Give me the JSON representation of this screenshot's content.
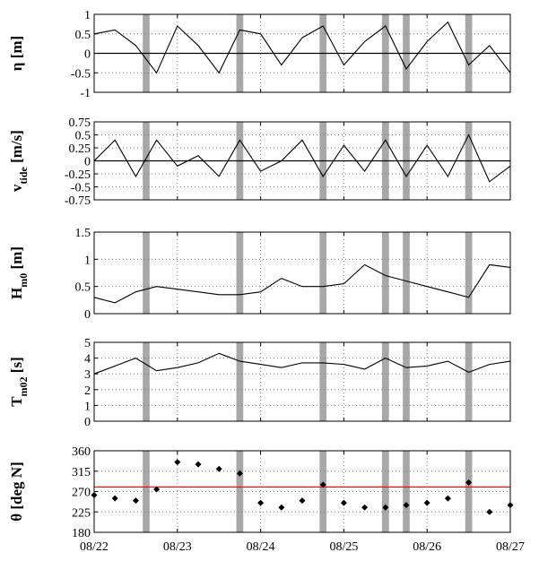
{
  "chart_data": [
    {
      "type": "line",
      "ylabel": "η [m]",
      "ylim": [
        -1,
        1
      ],
      "yticks": [
        "1",
        "0.5",
        "0",
        "-0.5",
        "-1"
      ],
      "x": [
        "08/22 00:00",
        "08/22 06:00",
        "08/22 12:00",
        "08/22 18:00",
        "08/23 00:00",
        "08/23 06:00",
        "08/23 12:00",
        "08/23 18:00",
        "08/24 00:00",
        "08/24 06:00",
        "08/24 12:00",
        "08/24 18:00",
        "08/25 00:00",
        "08/25 06:00",
        "08/25 12:00",
        "08/25 18:00",
        "08/26 00:00",
        "08/26 06:00",
        "08/26 12:00",
        "08/26 18:00",
        "08/27 00:00"
      ],
      "series": [
        {
          "values": [
            0.5,
            0.6,
            0.2,
            -0.5,
            0.7,
            0.2,
            -0.5,
            0.6,
            0.5,
            -0.3,
            0.4,
            0.7,
            -0.3,
            0.3,
            0.7,
            -0.4,
            0.3,
            0.8,
            -0.3,
            0.2,
            -0.5
          ]
        }
      ],
      "zero_line": 0,
      "grid": true
    },
    {
      "type": "line",
      "ylabel": "v_tide [m/s]",
      "ylim": [
        -0.75,
        0.75
      ],
      "yticks": [
        "0.75",
        "0.5",
        "0.25",
        "0",
        "-0.25",
        "-0.5",
        "-0.75"
      ],
      "x": [
        "08/22 00:00",
        "08/22 06:00",
        "08/22 12:00",
        "08/22 18:00",
        "08/23 00:00",
        "08/23 06:00",
        "08/23 12:00",
        "08/23 18:00",
        "08/24 00:00",
        "08/24 06:00",
        "08/24 12:00",
        "08/24 18:00",
        "08/25 00:00",
        "08/25 06:00",
        "08/25 12:00",
        "08/25 18:00",
        "08/26 00:00",
        "08/26 06:00",
        "08/26 12:00",
        "08/26 18:00",
        "08/27 00:00"
      ],
      "series": [
        {
          "values": [
            0.0,
            0.4,
            -0.3,
            0.4,
            -0.1,
            0.1,
            -0.3,
            0.4,
            -0.2,
            0.0,
            0.4,
            -0.3,
            0.3,
            -0.2,
            0.4,
            -0.3,
            0.3,
            -0.3,
            0.5,
            -0.4,
            -0.1
          ]
        }
      ],
      "zero_line": 0,
      "grid": true
    },
    {
      "type": "line",
      "ylabel": "H_m0 [m]",
      "ylim": [
        0,
        1.5
      ],
      "yticks": [
        "1.5",
        "1",
        "0.5",
        "0"
      ],
      "x": [
        "08/22 00:00",
        "08/22 06:00",
        "08/22 12:00",
        "08/22 18:00",
        "08/23 00:00",
        "08/23 06:00",
        "08/23 12:00",
        "08/23 18:00",
        "08/24 00:00",
        "08/24 06:00",
        "08/24 12:00",
        "08/24 18:00",
        "08/25 00:00",
        "08/25 06:00",
        "08/25 12:00",
        "08/25 18:00",
        "08/26 00:00",
        "08/26 06:00",
        "08/26 12:00",
        "08/26 18:00",
        "08/27 00:00"
      ],
      "series": [
        {
          "values": [
            0.3,
            0.2,
            0.4,
            0.5,
            0.45,
            0.4,
            0.35,
            0.35,
            0.4,
            0.65,
            0.5,
            0.5,
            0.55,
            0.9,
            0.7,
            0.6,
            0.5,
            0.4,
            0.3,
            0.9,
            0.85
          ]
        }
      ],
      "grid": true
    },
    {
      "type": "line",
      "ylabel": "T_m02 [s]",
      "ylim": [
        0,
        5
      ],
      "yticks": [
        "5",
        "4",
        "3",
        "2",
        "1",
        "0"
      ],
      "x": [
        "08/22 00:00",
        "08/22 06:00",
        "08/22 12:00",
        "08/22 18:00",
        "08/23 00:00",
        "08/23 06:00",
        "08/23 12:00",
        "08/23 18:00",
        "08/24 00:00",
        "08/24 06:00",
        "08/24 12:00",
        "08/24 18:00",
        "08/25 00:00",
        "08/25 06:00",
        "08/25 12:00",
        "08/25 18:00",
        "08/26 00:00",
        "08/26 06:00",
        "08/26 12:00",
        "08/26 18:00",
        "08/27 00:00"
      ],
      "series": [
        {
          "values": [
            3.0,
            3.5,
            4.0,
            3.2,
            3.4,
            3.7,
            4.3,
            3.8,
            3.6,
            3.4,
            3.7,
            3.7,
            3.6,
            3.3,
            4.0,
            3.4,
            3.5,
            3.8,
            3.1,
            3.6,
            3.8
          ]
        }
      ],
      "grid": true
    },
    {
      "type": "scatter",
      "ylabel": "θ [deg N]",
      "ylim": [
        180,
        360
      ],
      "yticks": [
        "360",
        "315",
        "270",
        "225",
        "180"
      ],
      "x": [
        "08/22 00:00",
        "08/22 06:00",
        "08/22 12:00",
        "08/22 18:00",
        "08/23 00:00",
        "08/23 06:00",
        "08/23 12:00",
        "08/23 18:00",
        "08/24 00:00",
        "08/24 06:00",
        "08/24 12:00",
        "08/24 18:00",
        "08/25 00:00",
        "08/25 06:00",
        "08/25 12:00",
        "08/25 18:00",
        "08/26 00:00",
        "08/26 06:00",
        "08/26 12:00",
        "08/26 18:00",
        "08/27 00:00"
      ],
      "series": [
        {
          "values": [
            262,
            255,
            250,
            275,
            335,
            330,
            320,
            310,
            245,
            235,
            250,
            285,
            245,
            235,
            235,
            240,
            245,
            255,
            290,
            225,
            240
          ]
        }
      ],
      "reference_line": 280,
      "grid": true
    }
  ],
  "xaxis": {
    "range": [
      "08/22 00:00",
      "08/27 00:00"
    ],
    "tick_labels": [
      "08/22",
      "08/23",
      "08/24",
      "08/25",
      "08/26",
      "08/27"
    ]
  },
  "shaded_intervals": [
    [
      "08/22 14:00",
      "08/22 16:00"
    ],
    [
      "08/23 17:00",
      "08/23 19:00"
    ],
    [
      "08/24 17:00",
      "08/24 19:00"
    ],
    [
      "08/25 11:00",
      "08/25 13:00"
    ],
    [
      "08/25 17:00",
      "08/25 19:00"
    ],
    [
      "08/26 11:00",
      "08/26 13:00"
    ]
  ],
  "colors": {
    "shade": "#a8a8a8",
    "line": "#000000",
    "reference_line": "#ff0000",
    "grid": "#808080"
  }
}
